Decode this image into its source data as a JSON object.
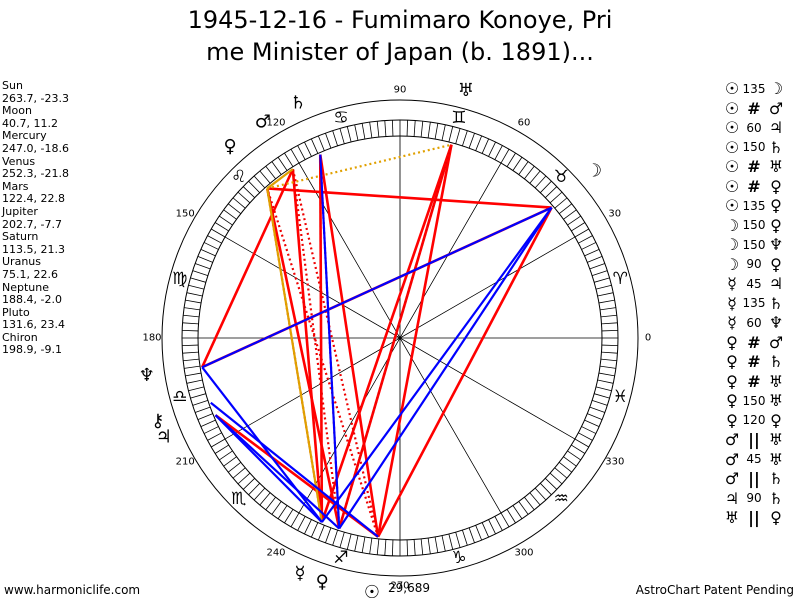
{
  "title": {
    "line1": "1945-12-16 - Fumimaro Konoye, Pri",
    "line2": "me Minister of Japan (b. 1891)..."
  },
  "planets": [
    {
      "name": "Sun",
      "coords": "263.7, -23.3"
    },
    {
      "name": "Moon",
      "coords": "40.7, 11.2"
    },
    {
      "name": "Mercury",
      "coords": "247.0, -18.6"
    },
    {
      "name": "Venus",
      "coords": "252.3, -21.8"
    },
    {
      "name": "Mars",
      "coords": "122.4, 22.8"
    },
    {
      "name": "Jupiter",
      "coords": "202.7, -7.7"
    },
    {
      "name": "Saturn",
      "coords": "113.5, 21.3"
    },
    {
      "name": "Uranus",
      "coords": "75.1, 22.6"
    },
    {
      "name": "Neptune",
      "coords": "188.4, -2.0"
    },
    {
      "name": "Pluto",
      "coords": "131.6, 23.4"
    },
    {
      "name": "Chiron",
      "coords": "198.9, -9.1"
    }
  ],
  "aspects": [
    {
      "p1": "☉",
      "aspect": "135",
      "p2": "☽"
    },
    {
      "p1": "☉",
      "aspect": "#",
      "p2": "♂"
    },
    {
      "p1": "☉",
      "aspect": "60",
      "p2": "♃"
    },
    {
      "p1": "☉",
      "aspect": "150",
      "p2": "♄"
    },
    {
      "p1": "☉",
      "aspect": "#",
      "p2": "♅"
    },
    {
      "p1": "☉",
      "aspect": "#",
      "p2": "♀"
    },
    {
      "p1": "☉",
      "aspect": "135",
      "p2": "♀"
    },
    {
      "p1": "☽",
      "aspect": "150",
      "p2": "♀"
    },
    {
      "p1": "☽",
      "aspect": "150",
      "p2": "♆"
    },
    {
      "p1": "☽",
      "aspect": "90",
      "p2": "♀"
    },
    {
      "p1": "☿",
      "aspect": "45",
      "p2": "♃"
    },
    {
      "p1": "☿",
      "aspect": "135",
      "p2": "♄"
    },
    {
      "p1": "☿",
      "aspect": "60",
      "p2": "♆"
    },
    {
      "p1": "♀",
      "aspect": "#",
      "p2": "♂"
    },
    {
      "p1": "♀",
      "aspect": "#",
      "p2": "♄"
    },
    {
      "p1": "♀",
      "aspect": "#",
      "p2": "♅"
    },
    {
      "p1": "♀",
      "aspect": "150",
      "p2": "♅"
    },
    {
      "p1": "♀",
      "aspect": "120",
      "p2": "♀"
    },
    {
      "p1": "♂",
      "aspect": "||",
      "p2": "♅"
    },
    {
      "p1": "♂",
      "aspect": "45",
      "p2": "♅"
    },
    {
      "p1": "♂",
      "aspect": "||",
      "p2": "♄"
    },
    {
      "p1": "♃",
      "aspect": "90",
      "p2": "♄"
    },
    {
      "p1": "♅",
      "aspect": "||",
      "p2": "♀"
    }
  ],
  "footer": {
    "left": "www.harmoniclife.com",
    "right": "AstroChart Patent Pending"
  },
  "wheel": {
    "degree_labels": [
      "0",
      "30",
      "60",
      "90",
      "120",
      "150",
      "180",
      "210",
      "240",
      "270",
      "300",
      "330"
    ],
    "signs": [
      "♈",
      "♉",
      "♊",
      "♋",
      "♌",
      "♍",
      "♎",
      "♏",
      "♐",
      "♑",
      "♒",
      "♓"
    ],
    "note": "29,689",
    "glyphs": [
      {
        "symbol": "♄",
        "deg": 113.5
      },
      {
        "symbol": "♅",
        "deg": 75.1
      },
      {
        "symbol": "♂",
        "deg": 122.4
      },
      {
        "symbol": "♀",
        "deg": 131.6
      },
      {
        "symbol": "☽",
        "deg": 40.7
      },
      {
        "symbol": "♆",
        "deg": 188.4
      },
      {
        "symbol": "⚷",
        "deg": 198.9
      },
      {
        "symbol": "♃",
        "deg": 202.7
      },
      {
        "symbol": "☿",
        "deg": 247.0
      },
      {
        "symbol": "♀",
        "deg": 252.3
      },
      {
        "symbol": "☉",
        "deg": 263.7
      }
    ]
  },
  "colors": {
    "red": "#ff0000",
    "blue": "#0000ff",
    "orange": "#e0a000",
    "dotted_red": "#ee0000"
  }
}
